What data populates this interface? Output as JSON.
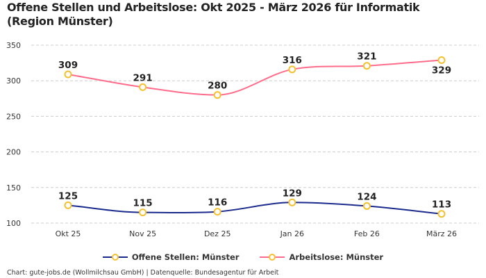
{
  "title": "Offene Stellen und Arbeitslose: Okt 2025 - März 2026 für Informatik (Region Münster)",
  "footer": "Chart: gute-jobs.de (Wollmilchsau GmbH) | Datenquelle: Bundesagentur für Arbeit",
  "chart_data": {
    "type": "line",
    "title": "Offene Stellen und Arbeitslose: Okt 2025 - März 2026 für Informatik (Region Münster)",
    "categories": [
      "Okt 25",
      "Nov 25",
      "Dez 25",
      "Jan 26",
      "Feb 26",
      "März 26"
    ],
    "ylim": [
      100,
      350
    ],
    "yticks": [
      100,
      150,
      200,
      250,
      300,
      350
    ],
    "grid": true,
    "legend_position": "bottom",
    "marker_color": "#f5c030",
    "series": [
      {
        "name": "Offene Stellen: Münster",
        "color": "#1a2a8c",
        "values": [
          125,
          115,
          116,
          129,
          124,
          113
        ]
      },
      {
        "name": "Arbeitslose: Münster",
        "color": "#ff6b8a",
        "values": [
          309,
          291,
          280,
          316,
          321,
          329
        ]
      }
    ]
  }
}
